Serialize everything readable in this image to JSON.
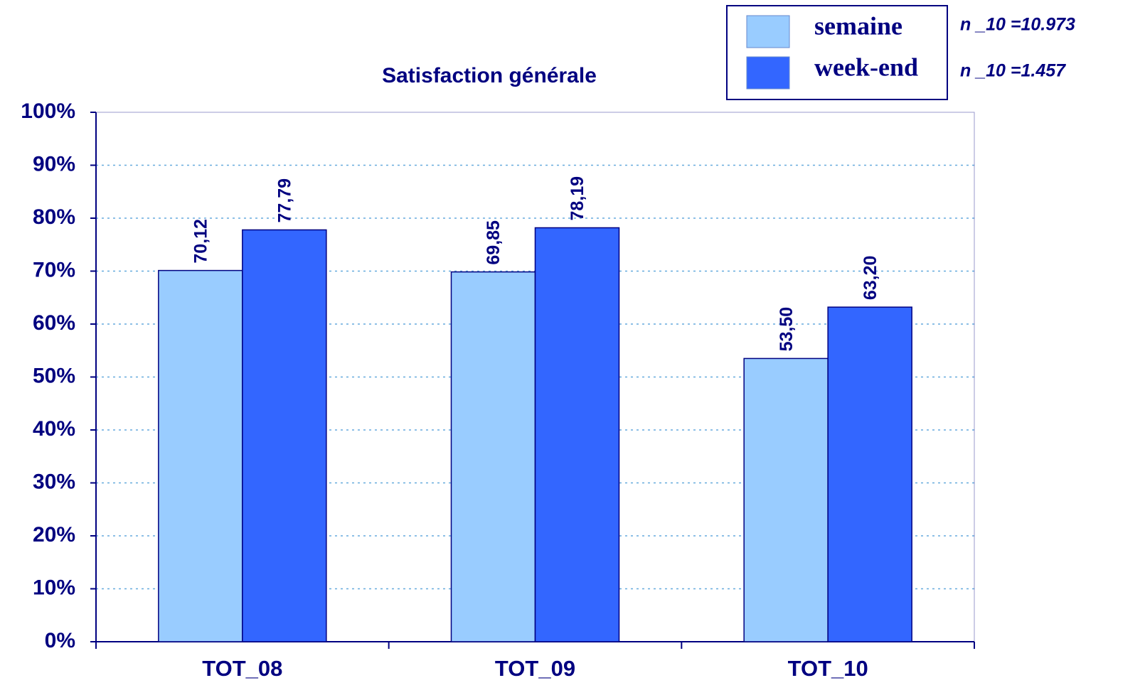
{
  "chart_data": {
    "type": "bar",
    "title": "Satisfaction générale",
    "categories": [
      "TOT_08",
      "TOT_09",
      "TOT_10"
    ],
    "series": [
      {
        "name": "semaine",
        "color": "#99ccff",
        "values": [
          70.12,
          69.85,
          53.5
        ],
        "value_labels": [
          "70,12",
          "69,85",
          "53,50"
        ]
      },
      {
        "name": "week-end",
        "color": "#3366ff",
        "values": [
          77.79,
          78.19,
          63.2
        ],
        "value_labels": [
          "77,79",
          "78,19",
          "63,20"
        ]
      }
    ],
    "annotations": [
      "n _10 =10.973",
      "n _10 =1.457"
    ],
    "ylim": [
      0,
      100
    ],
    "yticks": [
      {
        "value": 0,
        "label": "0%"
      },
      {
        "value": 10,
        "label": "10%"
      },
      {
        "value": 20,
        "label": "20%"
      },
      {
        "value": 30,
        "label": "30%"
      },
      {
        "value": 40,
        "label": "40%"
      },
      {
        "value": 50,
        "label": "50%"
      },
      {
        "value": 60,
        "label": "60%"
      },
      {
        "value": 70,
        "label": "70%"
      },
      {
        "value": 80,
        "label": "80%"
      },
      {
        "value": 90,
        "label": "90%"
      },
      {
        "value": 100,
        "label": "100%"
      }
    ],
    "grid": true
  }
}
